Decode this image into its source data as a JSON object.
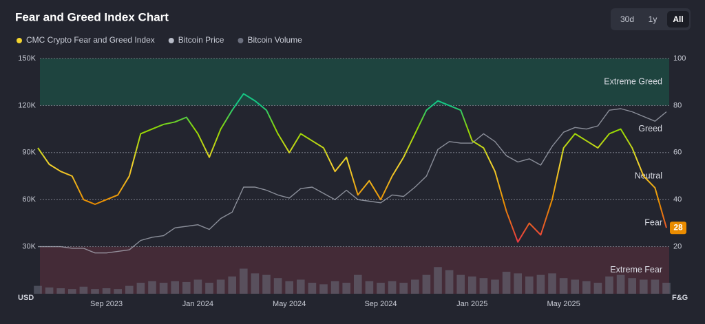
{
  "chart_data": {
    "type": "line",
    "title": "Fear and Greed Index Chart",
    "ranges": [
      "30d",
      "1y",
      "All"
    ],
    "selected_range": "All",
    "categories": [
      null,
      null,
      null,
      null,
      null,
      null,
      "Sep 2023",
      null,
      null,
      null,
      null,
      null,
      null,
      null,
      "Jan 2024",
      null,
      null,
      null,
      null,
      null,
      null,
      null,
      "May 2024",
      null,
      null,
      null,
      null,
      null,
      null,
      null,
      "Sep 2024",
      null,
      null,
      null,
      null,
      null,
      null,
      null,
      "Jan 2025",
      null,
      null,
      null,
      null,
      null,
      null,
      null,
      "May 2025",
      null,
      null,
      null,
      null,
      null,
      null,
      null,
      null,
      null
    ],
    "series": [
      {
        "name": "CMC Crypto Fear and Greed Index",
        "color": "#f3d42f",
        "axis": "y2",
        "values": [
          62,
          55,
          52,
          50,
          40,
          38,
          40,
          42,
          50,
          68,
          70,
          72,
          73,
          75,
          68,
          58,
          70,
          78,
          85,
          82,
          78,
          68,
          60,
          68,
          65,
          62,
          52,
          58,
          42,
          48,
          40,
          50,
          58,
          68,
          78,
          82,
          80,
          78,
          65,
          62,
          52,
          35,
          22,
          30,
          25,
          40,
          62,
          68,
          65,
          62,
          68,
          70,
          62,
          50,
          45,
          28
        ]
      },
      {
        "name": "Bitcoin Price",
        "color": "#b8bcc8",
        "axis": "y",
        "values": [
          30000,
          30000,
          30000,
          29000,
          29000,
          26000,
          26000,
          27000,
          28000,
          34000,
          36000,
          37000,
          42000,
          43000,
          44000,
          41000,
          48000,
          52000,
          68000,
          68000,
          66000,
          63000,
          61000,
          67000,
          68000,
          64000,
          60000,
          66000,
          60000,
          59000,
          58000,
          63000,
          62000,
          68000,
          75000,
          92000,
          97000,
          96000,
          96000,
          102000,
          97000,
          88000,
          84000,
          86000,
          82000,
          94000,
          103000,
          106000,
          105000,
          107000,
          117000,
          118000,
          116000,
          113000,
          110000,
          116000
        ]
      },
      {
        "name": "Bitcoin Volume",
        "color": "#6b6f7e",
        "axis": "y",
        "kind": "bar",
        "values": [
          5000,
          4000,
          3500,
          3000,
          4500,
          3000,
          3500,
          3000,
          5000,
          7000,
          8000,
          7000,
          8000,
          7500,
          9000,
          7000,
          9000,
          11000,
          16000,
          13000,
          12000,
          10000,
          8000,
          9000,
          7000,
          6000,
          8000,
          7000,
          12000,
          8000,
          7000,
          8000,
          7000,
          9000,
          12000,
          17000,
          15000,
          12000,
          11000,
          10000,
          9000,
          14000,
          13000,
          11000,
          12000,
          13000,
          10000,
          9000,
          8000,
          7000,
          11000,
          12000,
          10000,
          9000,
          9000,
          7000
        ]
      }
    ],
    "ylabel": "USD",
    "y2label": "F&G",
    "ylim": [
      0,
      150000
    ],
    "yticks": [
      {
        "value": 30000,
        "label": "30K"
      },
      {
        "value": 60000,
        "label": "60K"
      },
      {
        "value": 90000,
        "label": "90K"
      },
      {
        "value": 120000,
        "label": "120K"
      },
      {
        "value": 150000,
        "label": "150K"
      }
    ],
    "y2lim": [
      0,
      100
    ],
    "y2ticks": [
      20,
      40,
      60,
      80,
      100
    ],
    "zones": [
      {
        "label": "Extreme Greed",
        "from": 80,
        "to": 100,
        "color": "#1d4a42"
      },
      {
        "label": "Greed",
        "from": 60,
        "to": 80
      },
      {
        "label": "Neutral",
        "from": 40,
        "to": 60
      },
      {
        "label": "Fear",
        "from": 20,
        "to": 40
      },
      {
        "label": "Extreme Fear",
        "from": 0,
        "to": 20,
        "color": "#4a2d38"
      }
    ],
    "grid": true
  }
}
